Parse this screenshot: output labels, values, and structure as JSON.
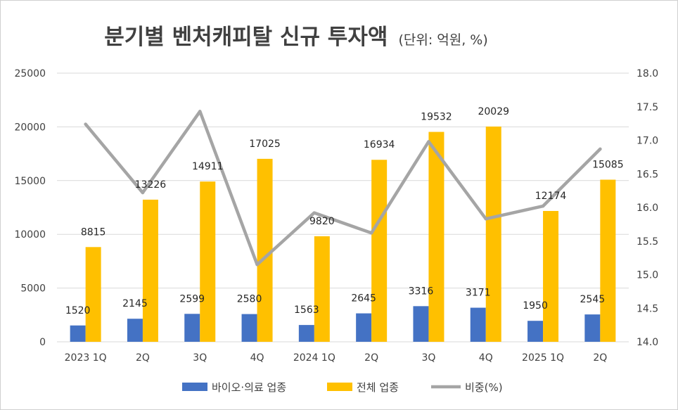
{
  "chart_data": {
    "type": "bar",
    "title": "분기별 벤처캐피탈 신규 투자액",
    "subtitle": "(단위: 억원, %)",
    "categories": [
      "2023 1Q",
      "2Q",
      "3Q",
      "4Q",
      "2024 1Q",
      "2Q",
      "3Q",
      "4Q",
      "2025 1Q",
      "2Q"
    ],
    "series": [
      {
        "name": "바이오·의료 업종",
        "kind": "bar",
        "axis": "left",
        "color": "#4472C4",
        "values": [
          1520,
          2145,
          2599,
          2580,
          1563,
          2645,
          3316,
          3171,
          1950,
          2545
        ]
      },
      {
        "name": "전체 업종",
        "kind": "bar",
        "axis": "left",
        "color": "#FFC000",
        "values": [
          8815,
          13226,
          14911,
          17025,
          9820,
          16934,
          19532,
          20029,
          12174,
          15085
        ]
      },
      {
        "name": "비중(%)",
        "kind": "line",
        "axis": "right",
        "color": "#A5A5A5",
        "values": [
          17.24,
          16.22,
          17.43,
          15.15,
          15.92,
          15.62,
          16.98,
          15.83,
          16.02,
          16.87
        ]
      }
    ],
    "y_left": {
      "min": 0,
      "max": 25000,
      "ticks": [
        "0",
        "5000",
        "10000",
        "15000",
        "20000",
        "25000"
      ]
    },
    "y_right": {
      "min": 14.0,
      "max": 18.0,
      "ticks": [
        "14.0",
        "14.5",
        "15.0",
        "15.5",
        "16.0",
        "16.5",
        "17.0",
        "17.5",
        "18.0"
      ]
    },
    "grid": true,
    "legend_position": "bottom"
  }
}
